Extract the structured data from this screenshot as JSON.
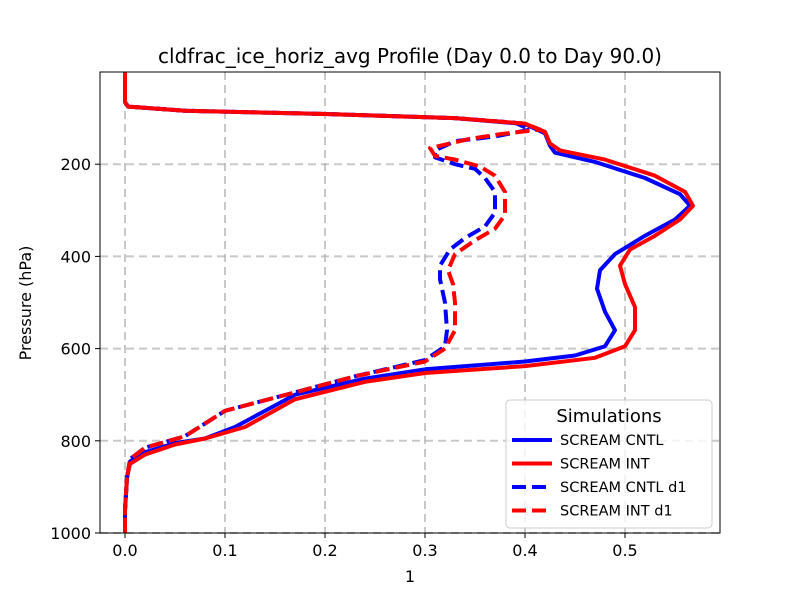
{
  "chart_data": {
    "type": "line",
    "title": "cldfrac_ice_horiz_avg Profile (Day 0.0 to Day 90.0)",
    "xlabel": "1",
    "ylabel": "Pressure (hPa)",
    "xlim": [
      -0.025,
      0.595
    ],
    "ylim": [
      1000,
      0
    ],
    "y_inverted": true,
    "x_ticks": [
      0.0,
      0.1,
      0.2,
      0.3,
      0.4,
      0.5
    ],
    "x_tick_labels": [
      "0.0",
      "0.1",
      "0.2",
      "0.3",
      "0.4",
      "0.5"
    ],
    "y_ticks": [
      200,
      400,
      600,
      800,
      1000
    ],
    "y_tick_labels": [
      "200",
      "400",
      "600",
      "800",
      "1000"
    ],
    "grid": true,
    "legend": {
      "title": "Simulations",
      "placement": "lower-right"
    },
    "series": [
      {
        "name": "SCREAM CNTL",
        "color": "#0000ff",
        "style": "solid",
        "points": [
          [
            0.0,
            0
          ],
          [
            0.0,
            65
          ],
          [
            0.003,
            75
          ],
          [
            0.06,
            84
          ],
          [
            0.2,
            91
          ],
          [
            0.33,
            100
          ],
          [
            0.4,
            113
          ],
          [
            0.42,
            133
          ],
          [
            0.425,
            160
          ],
          [
            0.43,
            175
          ],
          [
            0.47,
            195
          ],
          [
            0.52,
            230
          ],
          [
            0.555,
            265
          ],
          [
            0.565,
            290
          ],
          [
            0.55,
            320
          ],
          [
            0.52,
            355
          ],
          [
            0.49,
            395
          ],
          [
            0.475,
            430
          ],
          [
            0.472,
            470
          ],
          [
            0.48,
            520
          ],
          [
            0.49,
            560
          ],
          [
            0.48,
            595
          ],
          [
            0.45,
            615
          ],
          [
            0.4,
            628
          ],
          [
            0.3,
            645
          ],
          [
            0.24,
            665
          ],
          [
            0.17,
            700
          ],
          [
            0.11,
            770
          ],
          [
            0.08,
            795
          ],
          [
            0.05,
            805
          ],
          [
            0.02,
            825
          ],
          [
            0.005,
            845
          ],
          [
            0.002,
            880
          ],
          [
            0.0,
            950
          ],
          [
            0.0,
            1000
          ]
        ]
      },
      {
        "name": "SCREAM INT",
        "color": "#ff0000",
        "style": "solid",
        "points": [
          [
            0.0,
            0
          ],
          [
            0.0,
            65
          ],
          [
            0.003,
            75
          ],
          [
            0.06,
            84
          ],
          [
            0.2,
            91
          ],
          [
            0.33,
            100
          ],
          [
            0.4,
            112
          ],
          [
            0.42,
            130
          ],
          [
            0.425,
            155
          ],
          [
            0.435,
            170
          ],
          [
            0.48,
            190
          ],
          [
            0.53,
            225
          ],
          [
            0.56,
            260
          ],
          [
            0.568,
            290
          ],
          [
            0.555,
            320
          ],
          [
            0.53,
            355
          ],
          [
            0.505,
            385
          ],
          [
            0.495,
            420
          ],
          [
            0.5,
            460
          ],
          [
            0.51,
            510
          ],
          [
            0.51,
            560
          ],
          [
            0.5,
            595
          ],
          [
            0.47,
            620
          ],
          [
            0.4,
            638
          ],
          [
            0.3,
            653
          ],
          [
            0.24,
            672
          ],
          [
            0.17,
            710
          ],
          [
            0.12,
            770
          ],
          [
            0.08,
            795
          ],
          [
            0.05,
            808
          ],
          [
            0.02,
            830
          ],
          [
            0.005,
            850
          ],
          [
            0.002,
            880
          ],
          [
            0.0,
            950
          ],
          [
            0.0,
            1000
          ]
        ]
      },
      {
        "name": "SCREAM CNTL d1",
        "color": "#0000ff",
        "style": "dashed",
        "points": [
          [
            0.0,
            0
          ],
          [
            0.0,
            65
          ],
          [
            0.003,
            75
          ],
          [
            0.06,
            84
          ],
          [
            0.2,
            91
          ],
          [
            0.33,
            100
          ],
          [
            0.39,
            110
          ],
          [
            0.405,
            125
          ],
          [
            0.37,
            140
          ],
          [
            0.33,
            150
          ],
          [
            0.31,
            170
          ],
          [
            0.31,
            185
          ],
          [
            0.33,
            200
          ],
          [
            0.35,
            210
          ],
          [
            0.36,
            230
          ],
          [
            0.37,
            260
          ],
          [
            0.37,
            305
          ],
          [
            0.36,
            335
          ],
          [
            0.34,
            360
          ],
          [
            0.325,
            385
          ],
          [
            0.315,
            420
          ],
          [
            0.315,
            450
          ],
          [
            0.32,
            500
          ],
          [
            0.322,
            560
          ],
          [
            0.32,
            595
          ],
          [
            0.3,
            625
          ],
          [
            0.23,
            660
          ],
          [
            0.17,
            695
          ],
          [
            0.1,
            735
          ],
          [
            0.06,
            790
          ],
          [
            0.02,
            815
          ],
          [
            0.005,
            840
          ],
          [
            0.002,
            880
          ],
          [
            0.0,
            950
          ],
          [
            0.0,
            1000
          ]
        ]
      },
      {
        "name": "SCREAM INT d1",
        "color": "#ff0000",
        "style": "dashed",
        "points": [
          [
            0.0,
            0
          ],
          [
            0.0,
            65
          ],
          [
            0.003,
            75
          ],
          [
            0.06,
            84
          ],
          [
            0.2,
            91
          ],
          [
            0.33,
            100
          ],
          [
            0.4,
            112
          ],
          [
            0.415,
            125
          ],
          [
            0.375,
            135
          ],
          [
            0.345,
            145
          ],
          [
            0.305,
            165
          ],
          [
            0.31,
            182
          ],
          [
            0.33,
            190
          ],
          [
            0.355,
            205
          ],
          [
            0.37,
            225
          ],
          [
            0.38,
            260
          ],
          [
            0.38,
            310
          ],
          [
            0.37,
            340
          ],
          [
            0.35,
            365
          ],
          [
            0.33,
            395
          ],
          [
            0.323,
            430
          ],
          [
            0.328,
            460
          ],
          [
            0.33,
            500
          ],
          [
            0.33,
            560
          ],
          [
            0.32,
            600
          ],
          [
            0.3,
            628
          ],
          [
            0.23,
            660
          ],
          [
            0.17,
            695
          ],
          [
            0.1,
            735
          ],
          [
            0.06,
            790
          ],
          [
            0.02,
            815
          ],
          [
            0.005,
            840
          ],
          [
            0.002,
            880
          ],
          [
            0.0,
            950
          ],
          [
            0.0,
            1000
          ]
        ]
      }
    ]
  }
}
